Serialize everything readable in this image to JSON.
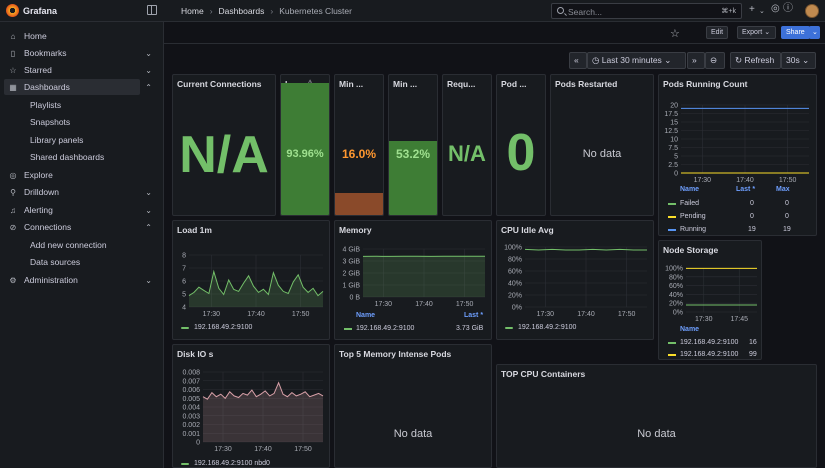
{
  "app": {
    "name": "Grafana"
  },
  "breadcrumb": [
    "Home",
    "Dashboards",
    "Kubernetes Cluster"
  ],
  "search": {
    "placeholder": "Search...",
    "shortcut": "⌘+k"
  },
  "sidebar": {
    "items": [
      {
        "label": "Home",
        "icon": "home-icon",
        "chevron": false
      },
      {
        "label": "Bookmarks",
        "icon": "bookmark-icon",
        "chevron": true
      },
      {
        "label": "Starred",
        "icon": "star-icon",
        "chevron": true
      },
      {
        "label": "Dashboards",
        "icon": "dashboards-icon",
        "chevron": true,
        "active": true
      },
      {
        "label": "Explore",
        "icon": "compass-icon",
        "chevron": false
      },
      {
        "label": "Drilldown",
        "icon": "drilldown-icon",
        "chevron": true
      },
      {
        "label": "Alerting",
        "icon": "bell-icon",
        "chevron": true
      },
      {
        "label": "Connections",
        "icon": "connections-icon",
        "chevron": true
      },
      {
        "label": "Administration",
        "icon": "gear-icon",
        "chevron": true
      }
    ],
    "dashboards_sub": [
      "Playlists",
      "Snapshots",
      "Library panels",
      "Shared dashboards"
    ],
    "connections_sub": [
      "Add new connection",
      "Data sources"
    ]
  },
  "toolbar": {
    "edit": "Edit",
    "export": "Export",
    "share": "Share"
  },
  "timebar": {
    "range": "Last 30 minutes",
    "refresh": "Refresh",
    "interval": "30s"
  },
  "stat_panels": {
    "current_connections": {
      "title": "Current Connections",
      "value": "N/A"
    },
    "load": {
      "title": "L...",
      "value": "93.96%",
      "fill": 0.94
    },
    "min1": {
      "title": "Min ...",
      "value": "16.0%",
      "fill": 0.16
    },
    "min2": {
      "title": "Min ...",
      "value": "53.2%",
      "fill": 0.53
    },
    "requ": {
      "title": "Requ...",
      "value": "N/A"
    },
    "pod": {
      "title": "Pod ...",
      "value": "0"
    },
    "pods_restarted": {
      "title": "Pods Restarted",
      "value": "No data"
    }
  },
  "pods_running": {
    "title": "Pods Running Count",
    "yticks": [
      "20",
      "17.5",
      "15",
      "12.5",
      "10",
      "7.5",
      "5",
      "2.5",
      "0"
    ],
    "xticks": [
      "17:30",
      "17:40",
      "17:50"
    ],
    "legend_headers": {
      "name": "Name",
      "last": "Last *",
      "max": "Max"
    },
    "rows": [
      {
        "name": "Failed",
        "last": "0",
        "max": "0",
        "color": "#73bf69"
      },
      {
        "name": "Pending",
        "last": "0",
        "max": "0",
        "color": "#fade2a"
      },
      {
        "name": "Running",
        "last": "19",
        "max": "19",
        "color": "#5794f2"
      }
    ]
  },
  "load1m": {
    "title": "Load 1m",
    "yticks": [
      "8",
      "7",
      "6",
      "5",
      "4"
    ],
    "xticks": [
      "17:30",
      "17:40",
      "17:50"
    ],
    "legend": "192.168.49.2:9100"
  },
  "memory": {
    "title": "Memory",
    "yticks": [
      "4 GiB",
      "3 GiB",
      "2 GiB",
      "1 GiB",
      "0 B"
    ],
    "xticks": [
      "17:30",
      "17:40",
      "17:50"
    ],
    "legend_headers": {
      "name": "Name",
      "last": "Last *"
    },
    "row": {
      "name": "192.168.49.2:9100",
      "last": "3.73 GiB"
    }
  },
  "cpu_idle": {
    "title": "CPU Idle Avg",
    "yticks": [
      "100%",
      "80%",
      "60%",
      "40%",
      "20%",
      "0%"
    ],
    "xticks": [
      "17:30",
      "17:40",
      "17:50"
    ],
    "legend": "192.168.49.2:9100"
  },
  "node_storage": {
    "title": "Node Storage",
    "yticks": [
      "100%",
      "80%",
      "60%",
      "40%",
      "20%",
      "0%"
    ],
    "xticks": [
      "17:30",
      "17:45"
    ],
    "legend_header": "Name",
    "rows": [
      {
        "name": "192.168.49.2:9100",
        "value": "16",
        "color": "#73bf69"
      },
      {
        "name": "192.168.49.2:9100",
        "value": "99",
        "color": "#fade2a"
      }
    ]
  },
  "disk_io": {
    "title": "Disk IO s",
    "yticks": [
      "0.008",
      "0.007",
      "0.006",
      "0.005",
      "0.004",
      "0.003",
      "0.002",
      "0.001",
      "0"
    ],
    "xticks": [
      "17:30",
      "17:40",
      "17:50"
    ],
    "legend": "192.168.49.2:9100 nbd0"
  },
  "top_memory": {
    "title": "Top 5 Memory Intense Pods",
    "value": "No data"
  },
  "top_cpu": {
    "title": "TOP CPU Containers",
    "value": "No data"
  },
  "colors": {
    "green": "#73bf69",
    "orange": "#ff9830",
    "yellow": "#fade2a",
    "blue": "#5794f2",
    "purple_line": "#d8a0a8"
  },
  "chart_data": [
    {
      "type": "line",
      "title": "Pods Running Count",
      "ylim": [
        0,
        20
      ],
      "series": [
        {
          "name": "Running",
          "values": [
            19,
            19,
            19,
            19,
            19,
            19,
            19,
            19,
            19,
            19
          ]
        },
        {
          "name": "Failed",
          "values": [
            0,
            0,
            0,
            0,
            0,
            0,
            0,
            0,
            0,
            0
          ]
        },
        {
          "name": "Pending",
          "values": [
            0,
            0,
            0,
            0,
            0,
            0,
            0,
            0,
            0,
            0
          ]
        }
      ]
    },
    {
      "type": "area",
      "title": "Load 1m",
      "ylim": [
        3.5,
        8.5
      ],
      "values": [
        4.6,
        4.9,
        5.4,
        5.1,
        4.8,
        6.9,
        5.3,
        4.7,
        6.1,
        5.2,
        5.0,
        5.8,
        6.5,
        5.5,
        4.9,
        5.2,
        4.7,
        6.8,
        5.6,
        5.0,
        4.8,
        5.9,
        6.6,
        5.4,
        4.9,
        5.3,
        4.6,
        5.0
      ]
    },
    {
      "type": "area",
      "title": "Memory",
      "ylim": [
        0,
        4.4
      ],
      "values": [
        3.72,
        3.73,
        3.72,
        3.74,
        3.73,
        3.72,
        3.73,
        3.74,
        3.73,
        3.73
      ]
    },
    {
      "type": "line",
      "title": "CPU Idle Avg",
      "ylim": [
        0,
        100
      ],
      "values": [
        96,
        95,
        96,
        95,
        95,
        96,
        95,
        96,
        95,
        95
      ]
    },
    {
      "type": "line",
      "title": "Node Storage",
      "ylim": [
        0,
        100
      ],
      "series": [
        {
          "values": [
            99,
            99,
            99,
            99,
            99,
            99
          ]
        },
        {
          "values": [
            16,
            16,
            16,
            16,
            16,
            16
          ]
        }
      ]
    },
    {
      "type": "area",
      "title": "Disk IO s",
      "ylim": [
        0,
        0.0085
      ],
      "values": [
        0.0055,
        0.0052,
        0.006,
        0.0055,
        0.0058,
        0.0053,
        0.0061,
        0.0056,
        0.0054,
        0.0059,
        0.0057,
        0.0063,
        0.0055,
        0.0058,
        0.0062,
        0.0056,
        0.0059,
        0.0072,
        0.0058,
        0.0055,
        0.006,
        0.0056,
        0.0058,
        0.0061,
        0.0055,
        0.0057,
        0.0059,
        0.0056
      ]
    }
  ]
}
